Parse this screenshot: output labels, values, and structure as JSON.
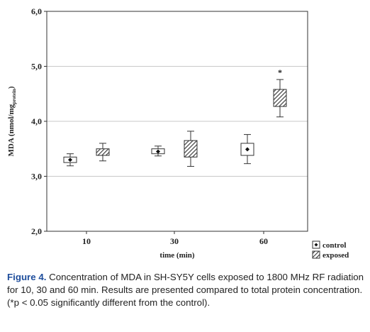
{
  "chart_data": {
    "type": "box",
    "xlabel": "time (min)",
    "ylabel": "MDA (nmol/mg",
    "ylabel_sub": "protein",
    "ylabel_close": ")",
    "ylim": [
      2.0,
      6.0
    ],
    "yticks": [
      "2,0",
      "3,0",
      "4,0",
      "5,0",
      "6,0"
    ],
    "ytick_values": [
      2.0,
      3.0,
      4.0,
      5.0,
      6.0
    ],
    "categories": [
      "10",
      "30",
      "60"
    ],
    "grid": "horizontal",
    "legend_position": "bottom-right",
    "series": [
      {
        "name": "control",
        "pattern": "plain",
        "boxes": [
          {
            "category": "10",
            "mean": 3.3,
            "box_low": 3.25,
            "box_high": 3.35,
            "whisker_low": 3.19,
            "whisker_high": 3.41
          },
          {
            "category": "30",
            "mean": 3.45,
            "box_low": 3.41,
            "box_high": 3.5,
            "whisker_low": 3.37,
            "whisker_high": 3.55
          },
          {
            "category": "60",
            "mean": 3.49,
            "box_low": 3.38,
            "box_high": 3.6,
            "whisker_low": 3.23,
            "whisker_high": 3.76
          }
        ]
      },
      {
        "name": "exposed",
        "pattern": "hatched",
        "boxes": [
          {
            "category": "10",
            "mean": 3.44,
            "box_low": 3.38,
            "box_high": 3.5,
            "whisker_low": 3.28,
            "whisker_high": 3.6
          },
          {
            "category": "30",
            "mean": 3.5,
            "box_low": 3.35,
            "box_high": 3.65,
            "whisker_low": 3.18,
            "whisker_high": 3.82
          },
          {
            "category": "60",
            "mean": 4.42,
            "box_low": 4.27,
            "box_high": 4.58,
            "whisker_low": 4.08,
            "whisker_high": 4.76,
            "annotation": "*"
          }
        ]
      }
    ],
    "colors": {
      "axis": "#333333",
      "grid": "#c8c8c8",
      "box_fill": "#ffffff",
      "hatch": "#333333"
    }
  },
  "caption": {
    "figure_label": "Figure 4.",
    "text": "Concentration of MDA in SH-SY5Y cells exposed to 1800 MHz RF radiation for 10, 30 and 60 min. Results are presented compared to total protein concentration. (*p < 0.05 significantly different from the control)."
  }
}
